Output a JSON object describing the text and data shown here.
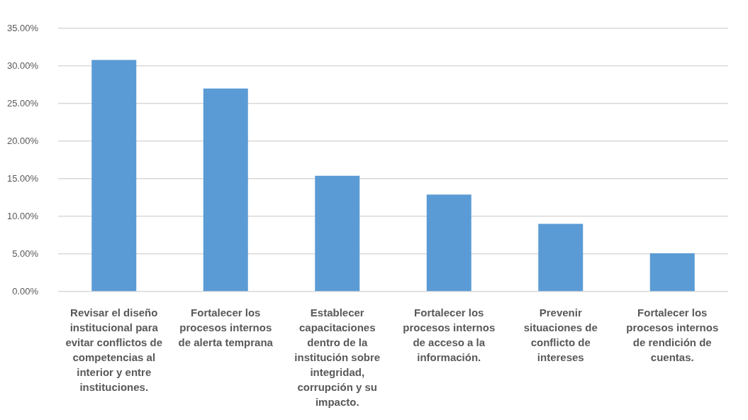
{
  "chart_data": {
    "type": "bar",
    "categories": [
      "Revisar el diseño institucional para evitar conflictos de competencias al interior y entre instituciones.",
      "Fortalecer los procesos internos de alerta temprana",
      "Establecer capacitaciones dentro de la institución sobre integridad, corrupción y su impacto.",
      "Fortalecer los procesos internos de acceso a la información.",
      "Prevenir situaciones de conflicto de intereses",
      "Fortalecer los procesos internos de rendición de cuentas."
    ],
    "values": [
      30.8,
      27.0,
      15.4,
      12.9,
      9.0,
      5.1
    ],
    "color": "#5b9bd5",
    "ylim": [
      0,
      35
    ],
    "yticks": [
      {
        "value": 0,
        "label": "0.00%"
      },
      {
        "value": 5,
        "label": "5.00%"
      },
      {
        "value": 10,
        "label": "10.00%"
      },
      {
        "value": 15,
        "label": "15.00%"
      },
      {
        "value": 20,
        "label": "20.00%"
      },
      {
        "value": 25,
        "label": "25.00%"
      },
      {
        "value": 30,
        "label": "30.00%"
      },
      {
        "value": 35,
        "label": "35.00%"
      }
    ],
    "grid": "y"
  }
}
